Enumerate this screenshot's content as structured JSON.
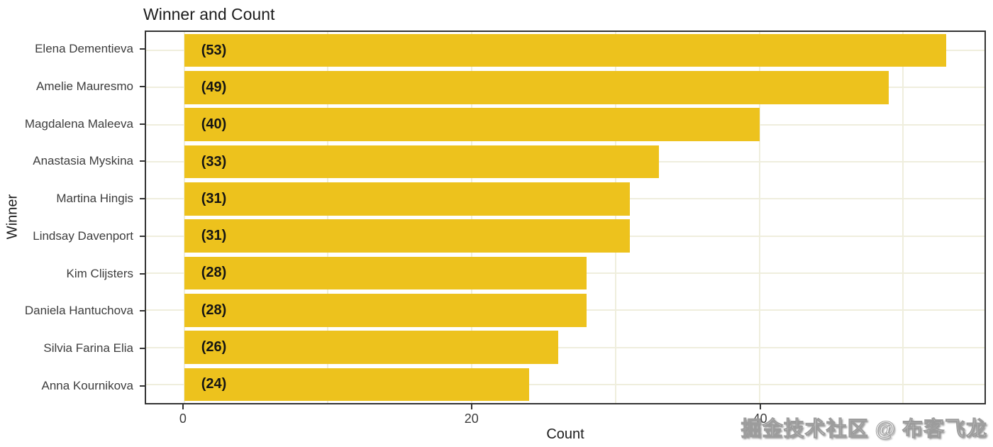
{
  "title": "Winner and Count",
  "watermark": "掘金技术社区 @ 布客飞龙",
  "colors": {
    "bar": "#edc21d",
    "grid": "#efeedd",
    "panel_border": "#333333",
    "title_text": "#1c1c1c",
    "tick_text": "#3d3d3d",
    "bar_label_text": "#141414"
  },
  "chart_data": {
    "type": "bar",
    "orientation": "horizontal",
    "title": "Winner and Count",
    "xlabel": "Count",
    "ylabel": "Winner",
    "categories": [
      "Elena Dementieva",
      "Amelie Mauresmo",
      "Magdalena Maleeva",
      "Anastasia Myskina",
      "Martina Hingis",
      "Lindsay Davenport",
      "Kim Clijsters",
      "Daniela Hantuchova",
      "Silvia Farina Elia",
      "Anna Kournikova"
    ],
    "values": [
      53,
      49,
      40,
      33,
      31,
      31,
      28,
      28,
      26,
      24
    ],
    "bar_labels": [
      "(53)",
      "(49)",
      "(40)",
      "(33)",
      "(31)",
      "(31)",
      "(28)",
      "(28)",
      "(26)",
      "(24)"
    ],
    "xlim": [
      -2.65,
      55.65
    ],
    "x_ticks": [
      0,
      20,
      40
    ],
    "x_gridlines": [
      0,
      10,
      20,
      30,
      40,
      50
    ],
    "grid": true,
    "legend": "none",
    "bar_color": "#edc21d",
    "bar_width_fraction": 0.89
  }
}
